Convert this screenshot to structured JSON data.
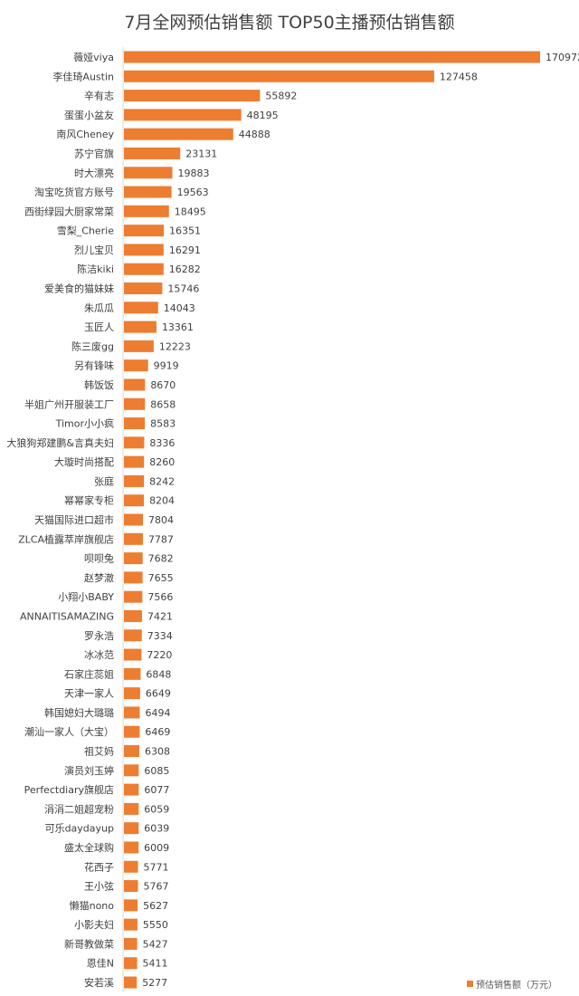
{
  "chart_data": {
    "type": "bar",
    "orientation": "horizontal",
    "title": "7月全网预估销售额  TOP50主播预估销售额",
    "categories": [
      "薇娅viya",
      "李佳琦Austin",
      "辛有志",
      "蛋蛋小盆友",
      "南风Cheney",
      "苏宁官旗",
      "时大漂亮",
      "淘宝吃货官方账号",
      "西街绿园大厨家常菜",
      "雪梨_Cherie",
      "烈儿宝贝",
      "陈洁kiki",
      "爱美食的猫妹妹",
      "朱瓜瓜",
      "玉匠人",
      "陈三废gg",
      "另有锋味",
      "韩饭饭",
      "半姐广州开服装工厂",
      "Timor小小疯",
      "大狼狗郑建鹏&言真夫妇",
      "大璇时尚搭配",
      "张庭",
      "幂幂家专柜",
      "天猫国际进口超市",
      "ZLCA植露萃岸旗舰店",
      "呗呗兔",
      "赵梦澈",
      "小翔小BABY",
      "ANNAITISAMAZING",
      "罗永浩",
      "冰冰范",
      "石家庄蕊姐",
      "天津一家人",
      "韩国媳妇大璐璐",
      "潮汕一家人（大宝）",
      "祖艾妈",
      "演员刘玉婷",
      "Perfectdiary旗舰店",
      "涓涓二姐超宠粉",
      "可乐daydayup",
      "盛太全球购",
      "花西子",
      "王小弦",
      "懒猫nono",
      "小影夫妇",
      "新哥教做菜",
      "恩佳N",
      "安若溪"
    ],
    "series": [
      {
        "name": "预估销售额（万元）",
        "values": [
          170972,
          127458,
          55892,
          48195,
          44888,
          23131,
          19883,
          19563,
          18495,
          16351,
          16291,
          16282,
          15746,
          14043,
          13361,
          12223,
          9919,
          8670,
          8658,
          8583,
          8336,
          8260,
          8242,
          8204,
          7804,
          7787,
          7682,
          7655,
          7566,
          7421,
          7334,
          7220,
          6848,
          6649,
          6494,
          6469,
          6308,
          6085,
          6077,
          6059,
          6039,
          6009,
          5771,
          5767,
          5627,
          5550,
          5427,
          5411,
          5277
        ]
      }
    ],
    "legend_position": "bottom-right",
    "grid": false,
    "data_labels": true,
    "bar_color": "#ED7D31"
  }
}
